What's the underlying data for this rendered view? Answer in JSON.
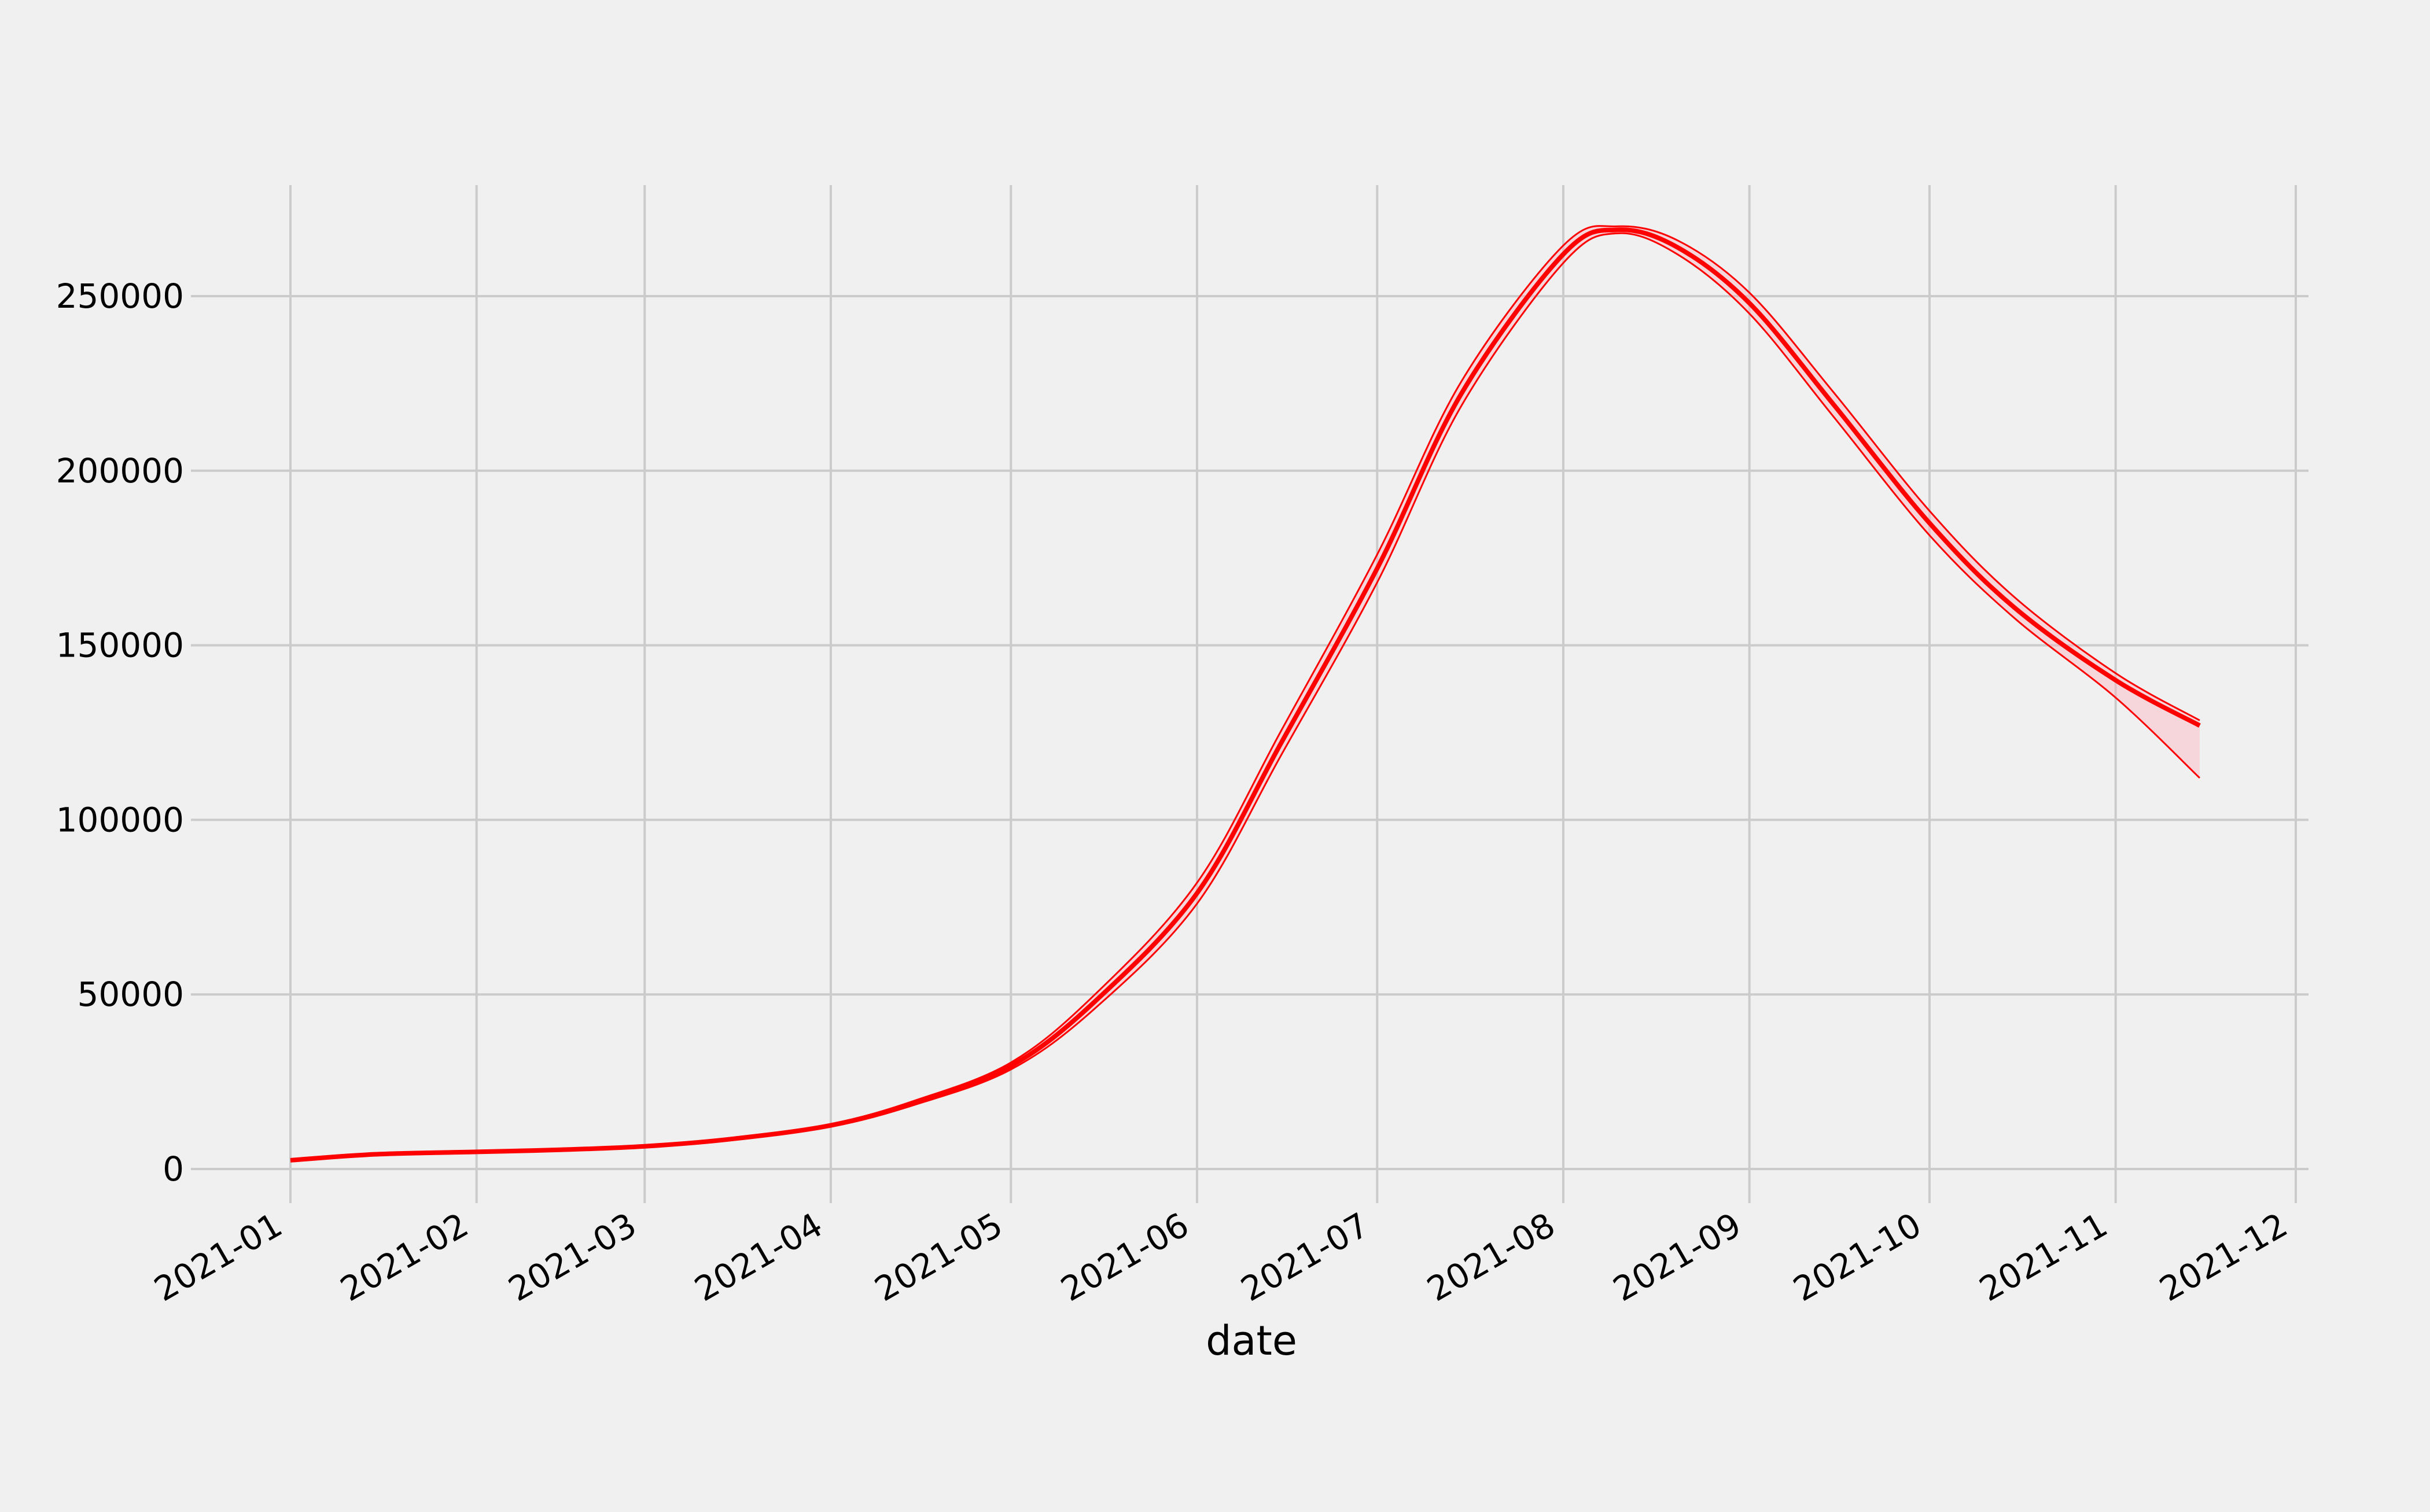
{
  "chart_data": {
    "type": "line",
    "title": "",
    "xlabel": "date",
    "ylabel": "",
    "x_type": "date",
    "xlim": [
      "2021-01-01",
      "2021-12-01"
    ],
    "ylim": [
      -12000,
      283000
    ],
    "grid": true,
    "legend": "none",
    "yticks": [
      0,
      50000,
      100000,
      150000,
      200000,
      250000
    ],
    "ytick_labels": [
      "0",
      "50000",
      "100000",
      "150000",
      "200000",
      "250000"
    ],
    "xticks": [
      "2021-01-01",
      "2021-02-01",
      "2021-03-01",
      "2021-04-01",
      "2021-05-01",
      "2021-06-01",
      "2021-07-01",
      "2021-08-01",
      "2021-09-01",
      "2021-10-01",
      "2021-11-01",
      "2021-12-01"
    ],
    "xtick_labels": [
      "2021-01",
      "2021-02",
      "2021-03",
      "2021-04",
      "2021-05",
      "2021-06",
      "2021-07",
      "2021-08",
      "2021-09",
      "2021-10",
      "2021-11",
      "2021-12"
    ],
    "colors": {
      "line": "#ff0000",
      "band": "#ffb6c1",
      "grid": "#cbcbcb",
      "background": "#f0f0f0"
    },
    "x": [
      "2021-01-01",
      "2021-01-15",
      "2021-02-01",
      "2021-02-15",
      "2021-03-01",
      "2021-03-15",
      "2021-04-01",
      "2021-04-15",
      "2021-05-01",
      "2021-05-15",
      "2021-06-01",
      "2021-06-15",
      "2021-07-01",
      "2021-07-15",
      "2021-08-01",
      "2021-08-10",
      "2021-08-20",
      "2021-09-01",
      "2021-09-15",
      "2021-10-01",
      "2021-10-15",
      "2021-11-01",
      "2021-11-15"
    ],
    "series": [
      {
        "role": "central",
        "values": [
          2500,
          4200,
          4900,
          5500,
          6500,
          8500,
          12500,
          19000,
          29500,
          48000,
          79000,
          122000,
          172000,
          222000,
          262000,
          269000,
          264000,
          248000,
          219000,
          185000,
          161000,
          140000,
          127000
        ]
      },
      {
        "role": "upper",
        "values": [
          2500,
          4200,
          4900,
          5500,
          6600,
          8700,
          12900,
          19600,
          30500,
          50000,
          82000,
          125500,
          176000,
          225500,
          264500,
          270000,
          266000,
          251000,
          222500,
          188500,
          164000,
          142000,
          128500
        ]
      },
      {
        "role": "lower",
        "values": [
          2500,
          4200,
          4900,
          5500,
          6400,
          8300,
          12100,
          18400,
          28500,
          46000,
          76000,
          118500,
          168000,
          218500,
          259500,
          268000,
          262000,
          245000,
          215500,
          181500,
          158000,
          135000,
          112000
        ]
      }
    ]
  }
}
